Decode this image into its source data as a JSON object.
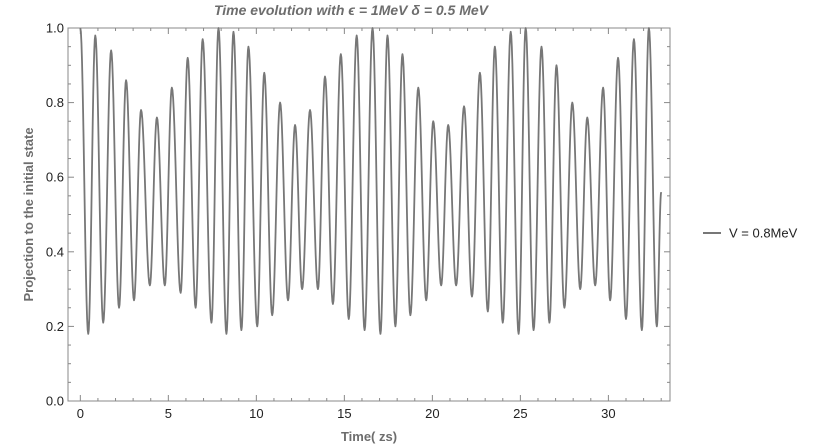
{
  "chart_data": {
    "type": "line",
    "title": "Time evolution with ϵ  =  1MeV  δ = 0.5 MeV",
    "xlabel": "Time( zs)",
    "ylabel": "Projection to the initial state",
    "xlim": [
      -0.7,
      33.5
    ],
    "ylim": [
      0.0,
      1.0
    ],
    "x_ticks": [
      0,
      5,
      10,
      15,
      20,
      25,
      30
    ],
    "y_ticks": [
      0.0,
      0.2,
      0.4,
      0.6,
      0.8,
      1.0
    ],
    "y_tick_labels": [
      "0.0",
      "0.2",
      "0.4",
      "0.6",
      "0.8",
      "1.0"
    ],
    "x_range_plotted": [
      0.0,
      33.0
    ],
    "series": [
      {
        "name": "V = 0.8MeV",
        "color": "#777777",
        "maxima": [
          [
            0.0,
            1.0
          ],
          [
            0.85,
            0.98
          ],
          [
            1.75,
            0.94
          ],
          [
            2.6,
            0.86
          ],
          [
            3.45,
            0.78
          ],
          [
            4.35,
            0.76
          ],
          [
            5.2,
            0.84
          ],
          [
            6.1,
            0.92
          ],
          [
            6.95,
            0.97
          ],
          [
            7.85,
            1.0
          ],
          [
            8.7,
            0.99
          ],
          [
            9.55,
            0.95
          ],
          [
            10.45,
            0.88
          ],
          [
            11.35,
            0.8
          ],
          [
            12.2,
            0.74
          ],
          [
            13.05,
            0.78
          ],
          [
            13.9,
            0.87
          ],
          [
            14.8,
            0.93
          ],
          [
            15.7,
            0.98
          ],
          [
            16.6,
            1.0
          ],
          [
            17.45,
            0.98
          ],
          [
            18.3,
            0.93
          ],
          [
            19.2,
            0.84
          ],
          [
            20.05,
            0.75
          ],
          [
            20.9,
            0.74
          ],
          [
            21.8,
            0.79
          ],
          [
            22.7,
            0.88
          ],
          [
            23.55,
            0.95
          ],
          [
            24.45,
            0.99
          ],
          [
            25.3,
            1.0
          ],
          [
            26.2,
            0.95
          ],
          [
            27.05,
            0.9
          ],
          [
            27.95,
            0.8
          ],
          [
            28.8,
            0.76
          ],
          [
            29.7,
            0.84
          ],
          [
            30.55,
            0.92
          ],
          [
            31.45,
            0.97
          ],
          [
            32.3,
            1.0
          ]
        ],
        "minima": [
          [
            0.45,
            0.18
          ],
          [
            1.3,
            0.21
          ],
          [
            2.2,
            0.25
          ],
          [
            3.05,
            0.27
          ],
          [
            3.95,
            0.31
          ],
          [
            4.8,
            0.31
          ],
          [
            5.7,
            0.29
          ],
          [
            6.55,
            0.25
          ],
          [
            7.45,
            0.21
          ],
          [
            8.3,
            0.18
          ],
          [
            9.15,
            0.19
          ],
          [
            10.05,
            0.2
          ],
          [
            10.9,
            0.23
          ],
          [
            11.8,
            0.27
          ],
          [
            12.6,
            0.3
          ],
          [
            13.5,
            0.3
          ],
          [
            14.35,
            0.26
          ],
          [
            15.25,
            0.22
          ],
          [
            16.15,
            0.19
          ],
          [
            17.05,
            0.18
          ],
          [
            17.9,
            0.2
          ],
          [
            18.75,
            0.23
          ],
          [
            19.65,
            0.27
          ],
          [
            20.5,
            0.31
          ],
          [
            21.35,
            0.31
          ],
          [
            22.25,
            0.28
          ],
          [
            23.15,
            0.24
          ],
          [
            24.0,
            0.21
          ],
          [
            24.9,
            0.18
          ],
          [
            25.75,
            0.19
          ],
          [
            26.65,
            0.21
          ],
          [
            27.5,
            0.25
          ],
          [
            28.4,
            0.3
          ],
          [
            29.25,
            0.31
          ],
          [
            30.1,
            0.27
          ],
          [
            31.0,
            0.22
          ],
          [
            31.9,
            0.19
          ],
          [
            32.75,
            0.2
          ]
        ],
        "end": [
          33.0,
          0.56
        ]
      }
    ],
    "legend": {
      "position": "right"
    },
    "grid": false
  }
}
